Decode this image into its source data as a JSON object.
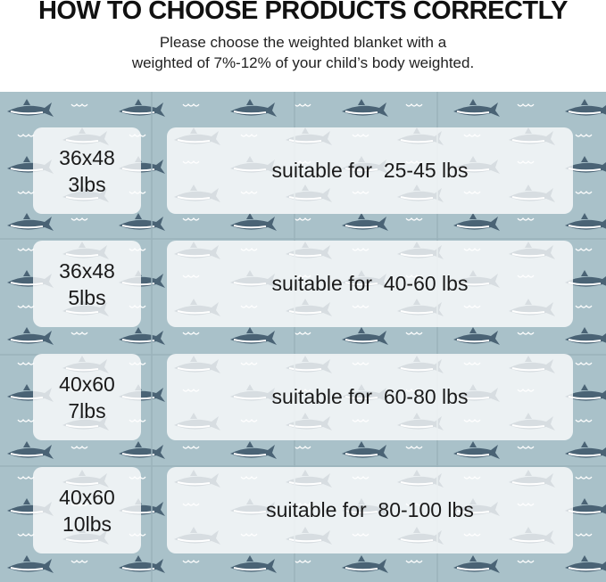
{
  "header": {
    "title": "HOW TO CHOOSE PRODUCTS CORRECTLY",
    "subtitle_line1": "Please choose the weighted blanket with a",
    "subtitle_line2": "weighted of 7%-12% of your child’s body weighted."
  },
  "colors": {
    "background": "#a9c1c9",
    "shark": "#4a6375",
    "panel": "#ffffff"
  },
  "rows": [
    {
      "size": "36x48",
      "weight": "3lbs",
      "suitable": "suitable for  25-45 lbs"
    },
    {
      "size": "36x48",
      "weight": "5lbs",
      "suitable": "suitable for  40-60 lbs"
    },
    {
      "size": "40x60",
      "weight": "7lbs",
      "suitable": "suitable for  60-80 lbs"
    },
    {
      "size": "40x60",
      "weight": "10lbs",
      "suitable": "suitable for  80-100 lbs"
    }
  ]
}
